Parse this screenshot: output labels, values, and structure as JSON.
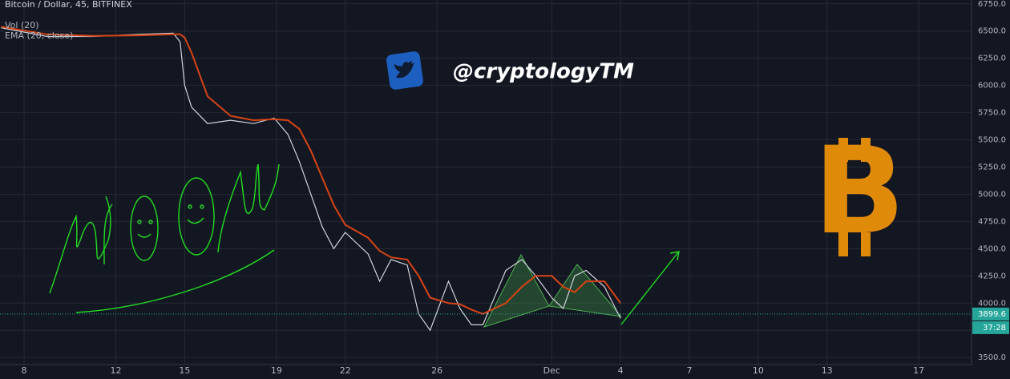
{
  "chart_data": {
    "type": "line",
    "title": "Bitcoin / Dollar, 45, BITFINEX",
    "indicator_label": "Vol (20)",
    "watermark": "@cryptologyTM",
    "logo_text": "B",
    "price_tag": 3899.6,
    "countdown": "37:28",
    "x": [
      7,
      9,
      11,
      13,
      14.5,
      14.8,
      15,
      15.3,
      16,
      17,
      18,
      18.9,
      19.5,
      20,
      20.5,
      21,
      21.5,
      22,
      23,
      23.5,
      24,
      24.7,
      25.2,
      25.7,
      26.5,
      27,
      27.5,
      28,
      29,
      29.7,
      30.3,
      31,
      31.5,
      32,
      32.5,
      33.3,
      34
    ],
    "series": [
      {
        "name": "Bitcoin / Dollar, 45, BITFINEX",
        "color": "#d1d4dc",
        "values": [
          6530,
          6450,
          6450,
          6470,
          6480,
          6400,
          6000,
          5800,
          5650,
          5680,
          5650,
          5700,
          5550,
          5300,
          5000,
          4700,
          4500,
          4650,
          4450,
          4200,
          4400,
          4350,
          3900,
          3750,
          4200,
          3950,
          3800,
          3800,
          4300,
          4400,
          4250,
          4050,
          3950,
          4250,
          4300,
          4150,
          3860
        ]
      },
      {
        "name": "EMA (20, close)",
        "color": "#d84315",
        "values": [
          6540,
          6470,
          6455,
          6460,
          6470,
          6470,
          6440,
          6300,
          5900,
          5720,
          5680,
          5690,
          5680,
          5600,
          5400,
          5150,
          4900,
          4720,
          4600,
          4480,
          4420,
          4400,
          4250,
          4050,
          4000,
          3990,
          3940,
          3900,
          4000,
          4150,
          4250,
          4250,
          4150,
          4100,
          4200,
          4200,
          4000
        ]
      }
    ],
    "xlim": [
      6.95,
      49.3
    ],
    "xticks": [
      8,
      12,
      15,
      19,
      22,
      26,
      {
        "value": 31,
        "label": "Dec"
      },
      {
        "value": 34,
        "label": "4"
      },
      {
        "value": 37,
        "label": "7"
      },
      {
        "value": 40,
        "label": "10"
      },
      {
        "value": 43,
        "label": "13"
      },
      {
        "value": 47,
        "label": "17"
      }
    ],
    "ylim": [
      3435,
      6785
    ],
    "yticks": [
      {
        "value": 3500,
        "label": "3500.0"
      },
      {
        "value": 3750,
        "label": "3750.0"
      },
      {
        "value": 4000,
        "label": "4000.0"
      },
      {
        "value": 4250,
        "label": "4250.0"
      },
      {
        "value": 4500,
        "label": "4500.0"
      },
      {
        "value": 4750,
        "label": "4750.0"
      },
      {
        "value": 5000,
        "label": "5000.0"
      },
      {
        "value": 5250,
        "label": "5250.0"
      },
      {
        "value": 5500,
        "label": "5500.0"
      },
      {
        "value": 5750,
        "label": "5750.0"
      },
      {
        "value": 6000,
        "label": "6000.0"
      },
      {
        "value": 6250,
        "label": "6250.0"
      },
      {
        "value": 6500,
        "label": "6500.0"
      },
      {
        "value": 6750,
        "label": "6750.0"
      }
    ],
    "grid": true
  }
}
